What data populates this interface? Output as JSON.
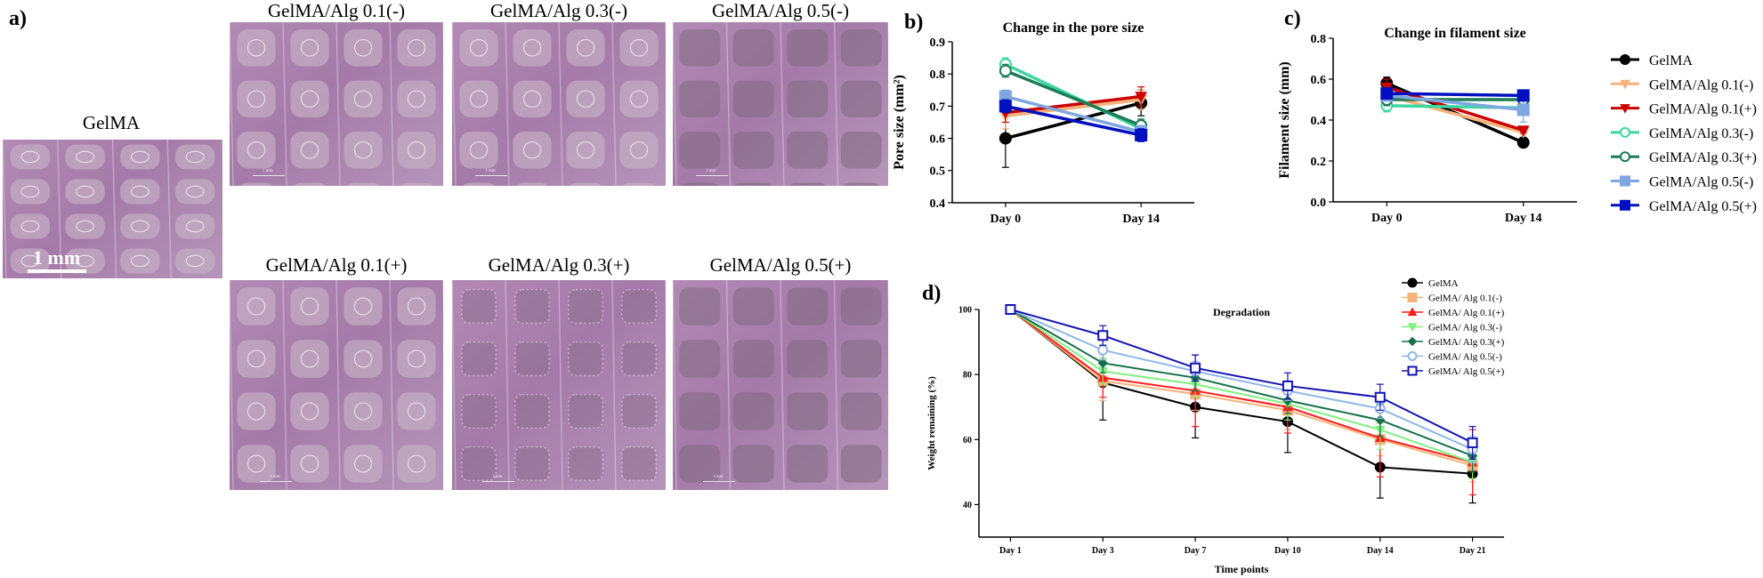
{
  "panel_a": {
    "letter": "a)",
    "images": [
      {
        "label": "GelMA",
        "scale_label": "1 mm",
        "variant": "gelma"
      },
      {
        "label": "GelMA/Alg 0.1(-)",
        "scale_label": "1 mm",
        "variant": "cells"
      },
      {
        "label": "GelMA/Alg 0.3(-)",
        "scale_label": "1 mm",
        "variant": "cells"
      },
      {
        "label": "GelMA/Alg 0.5(-)",
        "scale_label": "1 mm",
        "variant": "dark"
      },
      {
        "label": "GelMA/Alg 0.1(+)",
        "scale_label": "1 mm",
        "variant": "cells"
      },
      {
        "label": "GelMA/Alg 0.3(+)",
        "scale_label": "1 mm",
        "variant": "dots"
      },
      {
        "label": "GelMA/Alg 0.5(+)",
        "scale_label": "1 mm",
        "variant": "dark"
      }
    ]
  },
  "chart_data": [
    {
      "id": "b",
      "letter": "b)",
      "type": "line",
      "title": "Change in the pore size",
      "xlabel": "",
      "ylabel": "Pore size (mm²)",
      "categories": [
        "Day 0",
        "Day 14"
      ],
      "ylim": [
        0.4,
        0.9
      ],
      "yticks": [
        "0.4",
        "0.5",
        "0.6",
        "0.7",
        "0.8",
        "0.9"
      ],
      "series": [
        {
          "name": "GelMA",
          "values": [
            0.6,
            0.71
          ],
          "errors": [
            0.09,
            0.04
          ],
          "color": "#000000",
          "marker": "circle-filled"
        },
        {
          "name": "GelMA/Alg 0.1(-)",
          "values": [
            0.67,
            0.72
          ],
          "errors": [
            0.04,
            0.03
          ],
          "color": "#f5b27a",
          "marker": "triangle-down-filled"
        },
        {
          "name": "GelMA/Alg 0.1(+)",
          "values": [
            0.68,
            0.73
          ],
          "errors": [
            0.03,
            0.03
          ],
          "color": "#cc0000",
          "marker": "triangle-down-filled"
        },
        {
          "name": "GelMA/Alg 0.3(-)",
          "values": [
            0.83,
            0.63
          ],
          "errors": [
            0.02,
            0.03
          ],
          "color": "#3cd6a0",
          "marker": "circle-open"
        },
        {
          "name": "GelMA/Alg 0.3(+)",
          "values": [
            0.81,
            0.64
          ],
          "errors": [
            0.02,
            0.02
          ],
          "color": "#1c7c55",
          "marker": "circle-open"
        },
        {
          "name": "GelMA/Alg 0.5(-)",
          "values": [
            0.73,
            0.62
          ],
          "errors": [
            0.02,
            0.02
          ],
          "color": "#7ea6e0",
          "marker": "square-filled"
        },
        {
          "name": "GelMA/Alg 0.5(+)",
          "values": [
            0.7,
            0.61
          ],
          "errors": [
            0.02,
            0.02
          ],
          "color": "#0010c0",
          "marker": "square-filled"
        }
      ]
    },
    {
      "id": "c",
      "letter": "c)",
      "type": "line",
      "title": "Change in filament size",
      "xlabel": "",
      "ylabel": "Filament size (mm)",
      "categories": [
        "Day 0",
        "Day 14"
      ],
      "ylim": [
        0.0,
        0.8
      ],
      "yticks": [
        "0.0",
        "0.2",
        "0.4",
        "0.6",
        "0.8"
      ],
      "legend_position": "right",
      "series": [
        {
          "name": "GelMA",
          "values": [
            0.58,
            0.29
          ],
          "errors": [
            0.03,
            0.01
          ],
          "color": "#000000",
          "marker": "circle-filled"
        },
        {
          "name": "GelMA/Alg 0.1(-)",
          "values": [
            0.52,
            0.34
          ],
          "errors": [
            0.03,
            0.01
          ],
          "color": "#f5b27a",
          "marker": "triangle-down-filled"
        },
        {
          "name": "GelMA/Alg 0.1(+)",
          "values": [
            0.56,
            0.35
          ],
          "errors": [
            0.04,
            0.01
          ],
          "color": "#cc0000",
          "marker": "triangle-down-filled"
        },
        {
          "name": "GelMA/Alg 0.3(-)",
          "values": [
            0.47,
            0.46
          ],
          "errors": [
            0.03,
            0.02
          ],
          "color": "#3cd6a0",
          "marker": "circle-open"
        },
        {
          "name": "GelMA/Alg 0.3(+)",
          "values": [
            0.5,
            0.5
          ],
          "errors": [
            0.03,
            0.02
          ],
          "color": "#1c7c55",
          "marker": "circle-open"
        },
        {
          "name": "GelMA/Alg 0.5(-)",
          "values": [
            0.52,
            0.45
          ],
          "errors": [
            0.02,
            0.06
          ],
          "color": "#7ea6e0",
          "marker": "square-filled"
        },
        {
          "name": "GelMA/Alg 0.5(+)",
          "values": [
            0.53,
            0.52
          ],
          "errors": [
            0.02,
            0.02
          ],
          "color": "#0010c0",
          "marker": "square-filled"
        }
      ]
    },
    {
      "id": "d",
      "letter": "d)",
      "type": "line",
      "title": "Degradation",
      "xlabel": "Time points",
      "ylabel": "Weight remaining (%)",
      "categories": [
        "Day 1",
        "Day 3",
        "Day 7",
        "Day 10",
        "Day 14",
        "Day 21"
      ],
      "ylim": [
        30,
        100
      ],
      "yticks": [
        "40",
        "60",
        "80",
        "100"
      ],
      "legend_position": "top-right",
      "series": [
        {
          "name": "GelMA",
          "values": [
            100,
            77.5,
            70,
            65.5,
            51.5,
            49.5
          ],
          "errors": [
            0,
            11.5,
            9.5,
            9.5,
            9.5,
            9
          ],
          "color": "#000000",
          "marker": "circle-filled"
        },
        {
          "name": "GelMA/ Alg 0.1(-)",
          "values": [
            100,
            78,
            74,
            69,
            60,
            52
          ],
          "errors": [
            0,
            6,
            5,
            6,
            5,
            5
          ],
          "color": "#f5b27a",
          "marker": "square-filled"
        },
        {
          "name": "GelMA/ Alg 0.1(+)",
          "values": [
            100,
            79,
            75,
            70,
            60.5,
            53
          ],
          "errors": [
            0,
            6,
            11,
            8,
            12,
            10
          ],
          "color": "#ff1a1a",
          "marker": "triangle-up-filled"
        },
        {
          "name": "GelMA/ Alg 0.3(-)",
          "values": [
            100,
            81,
            77,
            71,
            63,
            53
          ],
          "errors": [
            0,
            4,
            4,
            5,
            6,
            5
          ],
          "color": "#7ff07f",
          "marker": "triangle-down-filled"
        },
        {
          "name": "GelMA/ Alg 0.3(+)",
          "values": [
            100,
            83.5,
            79,
            72,
            66,
            55
          ],
          "errors": [
            0,
            3,
            4,
            4,
            5,
            5
          ],
          "color": "#17704a",
          "marker": "diamond-filled"
        },
        {
          "name": "GelMA/ Alg 0.5(-)",
          "values": [
            100,
            87.5,
            81,
            75,
            69.5,
            57
          ],
          "errors": [
            0,
            3,
            3,
            3,
            3,
            4
          ],
          "color": "#8fb7e8",
          "marker": "circle-open"
        },
        {
          "name": "GelMA/ Alg 0.5(+)",
          "values": [
            100,
            92,
            82,
            76.5,
            73,
            59
          ],
          "errors": [
            0,
            3,
            4,
            4,
            4,
            5
          ],
          "color": "#1515b0",
          "marker": "square-open"
        }
      ]
    }
  ]
}
